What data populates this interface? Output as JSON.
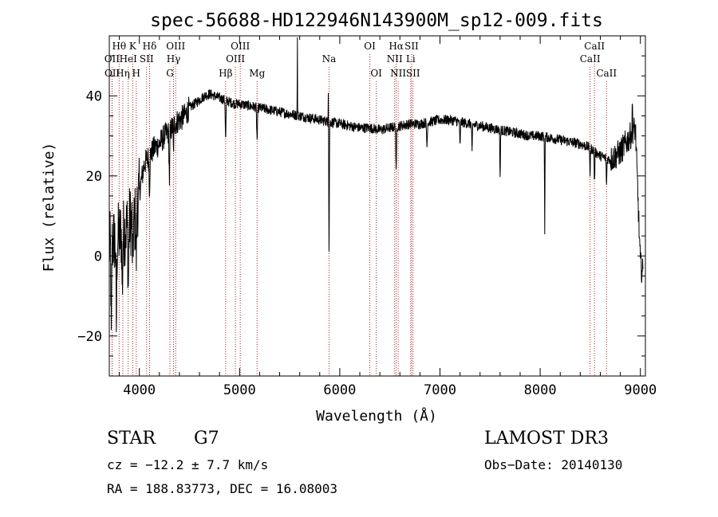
{
  "chart_data": {
    "type": "line",
    "title": "spec-56688-HD122946N143900M_sp12-009.fits",
    "xlabel": "Wavelength (Å)",
    "ylabel": "Flux (relative)",
    "xlim": [
      3700,
      9050
    ],
    "ylim": [
      -30,
      55
    ],
    "xticks": [
      4000,
      5000,
      6000,
      7000,
      8000,
      9000
    ],
    "yticks": [
      -20,
      0,
      20,
      40
    ],
    "xtick_labels": [
      "4000",
      "5000",
      "6000",
      "7000",
      "8000",
      "9000"
    ],
    "ytick_labels": [
      "−20",
      "0",
      "20",
      "40"
    ],
    "grid": false,
    "line_color": "#000000",
    "marker_color": "#b22222",
    "continuum": [
      [
        3700,
        2
      ],
      [
        3750,
        4
      ],
      [
        3800,
        5
      ],
      [
        3850,
        6
      ],
      [
        3900,
        9
      ],
      [
        3950,
        8
      ],
      [
        4000,
        16
      ],
      [
        4050,
        23
      ],
      [
        4100,
        25
      ],
      [
        4150,
        27
      ],
      [
        4200,
        28
      ],
      [
        4250,
        30
      ],
      [
        4300,
        31
      ],
      [
        4350,
        33
      ],
      [
        4400,
        34
      ],
      [
        4450,
        35
      ],
      [
        4500,
        37
      ],
      [
        4550,
        38
      ],
      [
        4600,
        39
      ],
      [
        4650,
        40
      ],
      [
        4700,
        40.5
      ],
      [
        4750,
        40
      ],
      [
        4800,
        39.5
      ],
      [
        4850,
        39
      ],
      [
        4900,
        38.5
      ],
      [
        4950,
        38
      ],
      [
        5000,
        38
      ],
      [
        5100,
        37.5
      ],
      [
        5200,
        37
      ],
      [
        5300,
        36.5
      ],
      [
        5400,
        36
      ],
      [
        5500,
        35.5
      ],
      [
        5600,
        35
      ],
      [
        5700,
        34.5
      ],
      [
        5800,
        34
      ],
      [
        5900,
        33.5
      ],
      [
        6000,
        33
      ],
      [
        6100,
        32.5
      ],
      [
        6200,
        32
      ],
      [
        6300,
        32
      ],
      [
        6400,
        31.5
      ],
      [
        6500,
        32
      ],
      [
        6600,
        32.5
      ],
      [
        6700,
        33
      ],
      [
        6800,
        33
      ],
      [
        6900,
        33.5
      ],
      [
        7000,
        34
      ],
      [
        7100,
        34
      ],
      [
        7200,
        33.5
      ],
      [
        7300,
        33
      ],
      [
        7400,
        32.5
      ],
      [
        7500,
        32
      ],
      [
        7600,
        31.5
      ],
      [
        7700,
        31
      ],
      [
        7800,
        30.5
      ],
      [
        7900,
        30
      ],
      [
        8000,
        30
      ],
      [
        8100,
        29.5
      ],
      [
        8200,
        29
      ],
      [
        8300,
        28.5
      ],
      [
        8400,
        28
      ],
      [
        8500,
        27
      ],
      [
        8600,
        25
      ],
      [
        8700,
        24
      ],
      [
        8800,
        26
      ],
      [
        8900,
        30
      ],
      [
        8950,
        32
      ],
      [
        9000,
        -2
      ],
      [
        9020,
        -4
      ]
    ],
    "absorption": [
      {
        "x": 3720,
        "depth": 25,
        "width": 10
      },
      {
        "x": 3770,
        "depth": 22,
        "width": 12
      },
      {
        "x": 3830,
        "depth": 14,
        "width": 10
      },
      {
        "x": 3890,
        "depth": 15,
        "width": 12
      },
      {
        "x": 3934,
        "depth": 12,
        "width": 10
      },
      {
        "x": 3969,
        "depth": 12,
        "width": 10
      },
      {
        "x": 4101,
        "depth": 8,
        "width": 10
      },
      {
        "x": 4300,
        "depth": 12,
        "width": 10
      },
      {
        "x": 4340,
        "depth": 7,
        "width": 8
      },
      {
        "x": 4861,
        "depth": 10,
        "width": 10
      },
      {
        "x": 5175,
        "depth": 8,
        "width": 12
      },
      {
        "x": 5893,
        "depth": 33,
        "width": 8
      },
      {
        "x": 6563,
        "depth": 12,
        "width": 8
      },
      {
        "x": 6870,
        "depth": 6,
        "width": 10
      },
      {
        "x": 7200,
        "depth": 6,
        "width": 10
      },
      {
        "x": 7320,
        "depth": 8,
        "width": 8
      },
      {
        "x": 7600,
        "depth": 12,
        "width": 8
      },
      {
        "x": 8045,
        "depth": 24,
        "width": 6
      },
      {
        "x": 8498,
        "depth": 7,
        "width": 8
      },
      {
        "x": 8542,
        "depth": 8,
        "width": 8
      },
      {
        "x": 8662,
        "depth": 7,
        "width": 8
      }
    ],
    "emission": [
      {
        "x": 5577,
        "height": 20,
        "width": 4
      },
      {
        "x": 5886,
        "height": 11,
        "width": 4
      },
      {
        "x": 8920,
        "height": 8,
        "width": 6
      }
    ],
    "line_markers": [
      {
        "label": "Hθ",
        "x": 3798,
        "row": 1
      },
      {
        "label": "OII",
        "x": 3727,
        "row": 2
      },
      {
        "label": "OII",
        "x": 3729,
        "row": 3
      },
      {
        "label": "Hη",
        "x": 3835,
        "row": 3
      },
      {
        "label": "HeI",
        "x": 3889,
        "row": 2
      },
      {
        "label": "K",
        "x": 3934,
        "row": 1
      },
      {
        "label": "H",
        "x": 3969,
        "row": 3
      },
      {
        "label": "SII",
        "x": 4072,
        "row": 2
      },
      {
        "label": "Hδ",
        "x": 4102,
        "row": 1
      },
      {
        "label": "OIII",
        "x": 4363,
        "row": 1
      },
      {
        "label": "Hγ",
        "x": 4341,
        "row": 2
      },
      {
        "label": "G",
        "x": 4305,
        "row": 3
      },
      {
        "label": "Hβ",
        "x": 4861,
        "row": 3
      },
      {
        "label": "OIII",
        "x": 4959,
        "row": 2
      },
      {
        "label": "OIII",
        "x": 5007,
        "row": 1
      },
      {
        "label": "Mg",
        "x": 5175,
        "row": 3
      },
      {
        "label": "Na",
        "x": 5893,
        "row": 2
      },
      {
        "label": "OI",
        "x": 6300,
        "row": 1
      },
      {
        "label": "OI",
        "x": 6364,
        "row": 3
      },
      {
        "label": "NII",
        "x": 6548,
        "row": 2
      },
      {
        "label": "Hα",
        "x": 6563,
        "row": 1
      },
      {
        "label": "NII",
        "x": 6583,
        "row": 3
      },
      {
        "label": "Li",
        "x": 6708,
        "row": 2
      },
      {
        "label": "SII",
        "x": 6717,
        "row": 1
      },
      {
        "label": "SII",
        "x": 6731,
        "row": 3
      },
      {
        "label": "CaII",
        "x": 8498,
        "row": 2
      },
      {
        "label": "CaII",
        "x": 8542,
        "row": 1
      },
      {
        "label": "CaII",
        "x": 8662,
        "row": 3
      }
    ]
  },
  "footer": {
    "object_class": "STAR",
    "subclass": "G7",
    "survey": "LAMOST DR3",
    "redshift": "cz = −12.2 ± 7.7 km/s",
    "obs_date": "Obs−Date: 20140130",
    "coords": "RA = 188.83773, DEC =  16.08003"
  }
}
